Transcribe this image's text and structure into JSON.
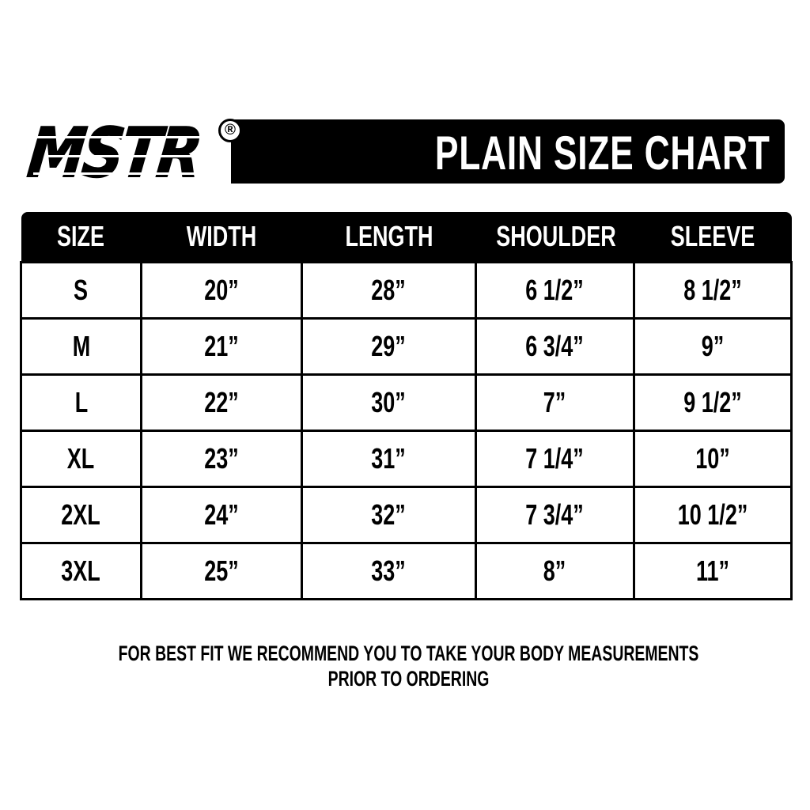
{
  "logo": {
    "text": "MSTR",
    "registered": "®"
  },
  "title": "PLAIN SIZE CHART",
  "table": {
    "headers": [
      "SIZE",
      "WIDTH",
      "LENGTH",
      "SHOULDER",
      "SLEEVE"
    ],
    "rows": [
      [
        "S",
        "20”",
        "28”",
        "6 1/2”",
        "8 1/2”"
      ],
      [
        "M",
        "21”",
        "29”",
        "6 3/4”",
        "9”"
      ],
      [
        "L",
        "22”",
        "30”",
        "7”",
        "9 1/2”"
      ],
      [
        "XL",
        "23”",
        "31”",
        "7 1/4”",
        "10”"
      ],
      [
        "2XL",
        "24”",
        "32”",
        "7 3/4”",
        "10 1/2”"
      ],
      [
        "3XL",
        "25”",
        "33”",
        "8”",
        "11”"
      ]
    ]
  },
  "note": {
    "line1": "FOR BEST FIT WE RECOMMEND YOU TO TAKE YOUR BODY MEASUREMENTS",
    "line2": "PRIOR TO ORDERING"
  }
}
